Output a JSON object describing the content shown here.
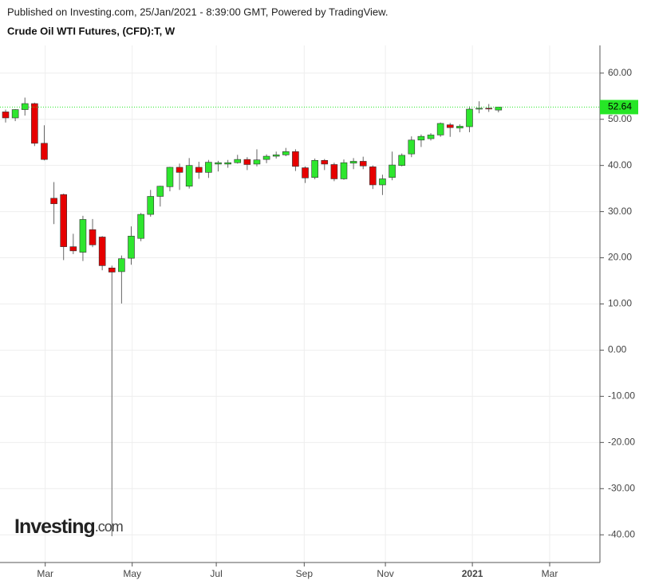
{
  "header": "Published on Investing.com, 25/Jan/2021 - 8:39:00 GMT, Powered by TradingView.",
  "chart_data": {
    "type": "candlestick",
    "title": "Crude Oil WTI Futures, (CFD):T, W",
    "watermark": {
      "brand": "Investing",
      "suffix": ".com"
    },
    "up_color": "#2ee62e",
    "down_color": "#e60000",
    "last_price": 52.64,
    "last_price_color": "#26e626",
    "xlim": [
      -0.58,
      61.5
    ],
    "xticks": [
      {
        "value": 4.1,
        "label": "Mar"
      },
      {
        "value": 13.1,
        "label": "May"
      },
      {
        "value": 21.8,
        "label": "Jul"
      },
      {
        "value": 30.9,
        "label": "Sep"
      },
      {
        "value": 39.3,
        "label": "Nov"
      },
      {
        "value": 48.3,
        "label": "2021"
      },
      {
        "value": 56.3,
        "label": "Mar"
      }
    ],
    "ylim": [
      -46,
      66
    ],
    "yticks": [
      {
        "value": 60,
        "label": "60.00"
      },
      {
        "value": 50,
        "label": "50.00"
      },
      {
        "value": 40,
        "label": "40.00"
      },
      {
        "value": 30,
        "label": "30.00"
      },
      {
        "value": 20,
        "label": "20.00"
      },
      {
        "value": 10,
        "label": "10.00"
      },
      {
        "value": 0,
        "label": "0.00"
      },
      {
        "value": -10,
        "label": "-10.00"
      },
      {
        "value": -20,
        "label": "-20.00"
      },
      {
        "value": -30,
        "label": "-30.00"
      },
      {
        "value": -40,
        "label": "-40.00"
      }
    ],
    "grid": true,
    "open": [
      51.6,
      50.3,
      52.1,
      53.4,
      44.8,
      32.9,
      33.7,
      22.4,
      21.2,
      26.1,
      24.5,
      17.8,
      17.0,
      19.9,
      24.2,
      29.4,
      33.3,
      35.4,
      39.6,
      35.5,
      39.6,
      38.5,
      40.3,
      40.3,
      40.6,
      41.3,
      40.3,
      41.3,
      42.0,
      42.3,
      43.0,
      39.5,
      37.4,
      41.1,
      40.2,
      37.1,
      40.5,
      40.9,
      39.7,
      35.8,
      37.4,
      40.0,
      42.5,
      45.5,
      45.8,
      46.6,
      48.8,
      48.1,
      48.4,
      52.2,
      52.4,
      52.0
    ],
    "high": [
      52.1,
      52.2,
      54.7,
      53.6,
      48.7,
      36.4,
      33.9,
      25.2,
      29.1,
      28.4,
      24.7,
      18.3,
      20.5,
      26.8,
      29.7,
      34.7,
      35.6,
      39.7,
      40.4,
      41.6,
      40.8,
      41.2,
      41.0,
      41.2,
      42.3,
      41.8,
      43.5,
      42.4,
      43.0,
      43.8,
      43.5,
      39.8,
      41.5,
      41.4,
      40.6,
      41.3,
      41.6,
      41.9,
      40.0,
      38.0,
      43.0,
      42.6,
      46.3,
      46.7,
      47.0,
      49.3,
      49.2,
      48.9,
      52.8,
      53.9,
      53.3,
      52.7
    ],
    "low": [
      49.3,
      49.6,
      50.8,
      44.2,
      41.1,
      27.3,
      19.5,
      20.8,
      19.3,
      22.3,
      17.3,
      -40.3,
      10.1,
      18.5,
      23.6,
      28.9,
      31.1,
      34.4,
      34.7,
      35.0,
      37.1,
      37.3,
      38.7,
      39.5,
      40.4,
      39.0,
      39.8,
      40.5,
      41.5,
      42.0,
      38.8,
      36.2,
      37.0,
      39.0,
      36.6,
      36.9,
      39.2,
      39.2,
      34.9,
      33.6,
      36.8,
      39.8,
      41.8,
      44.0,
      45.4,
      46.2,
      46.2,
      47.2,
      47.2,
      51.3,
      51.6,
      51.5
    ],
    "close": [
      50.3,
      52.1,
      53.4,
      44.8,
      41.3,
      31.7,
      22.4,
      21.5,
      28.3,
      22.8,
      18.3,
      16.9,
      19.8,
      24.7,
      29.4,
      33.3,
      35.5,
      39.6,
      38.5,
      40.0,
      38.5,
      40.7,
      40.6,
      40.6,
      41.3,
      40.2,
      41.2,
      42.0,
      42.3,
      43.0,
      39.8,
      37.3,
      41.1,
      40.3,
      37.1,
      40.6,
      40.9,
      39.9,
      35.8,
      37.1,
      40.1,
      42.2,
      45.5,
      46.3,
      46.6,
      49.1,
      48.2,
      48.5,
      52.2,
      52.4,
      52.3,
      52.64
    ]
  }
}
